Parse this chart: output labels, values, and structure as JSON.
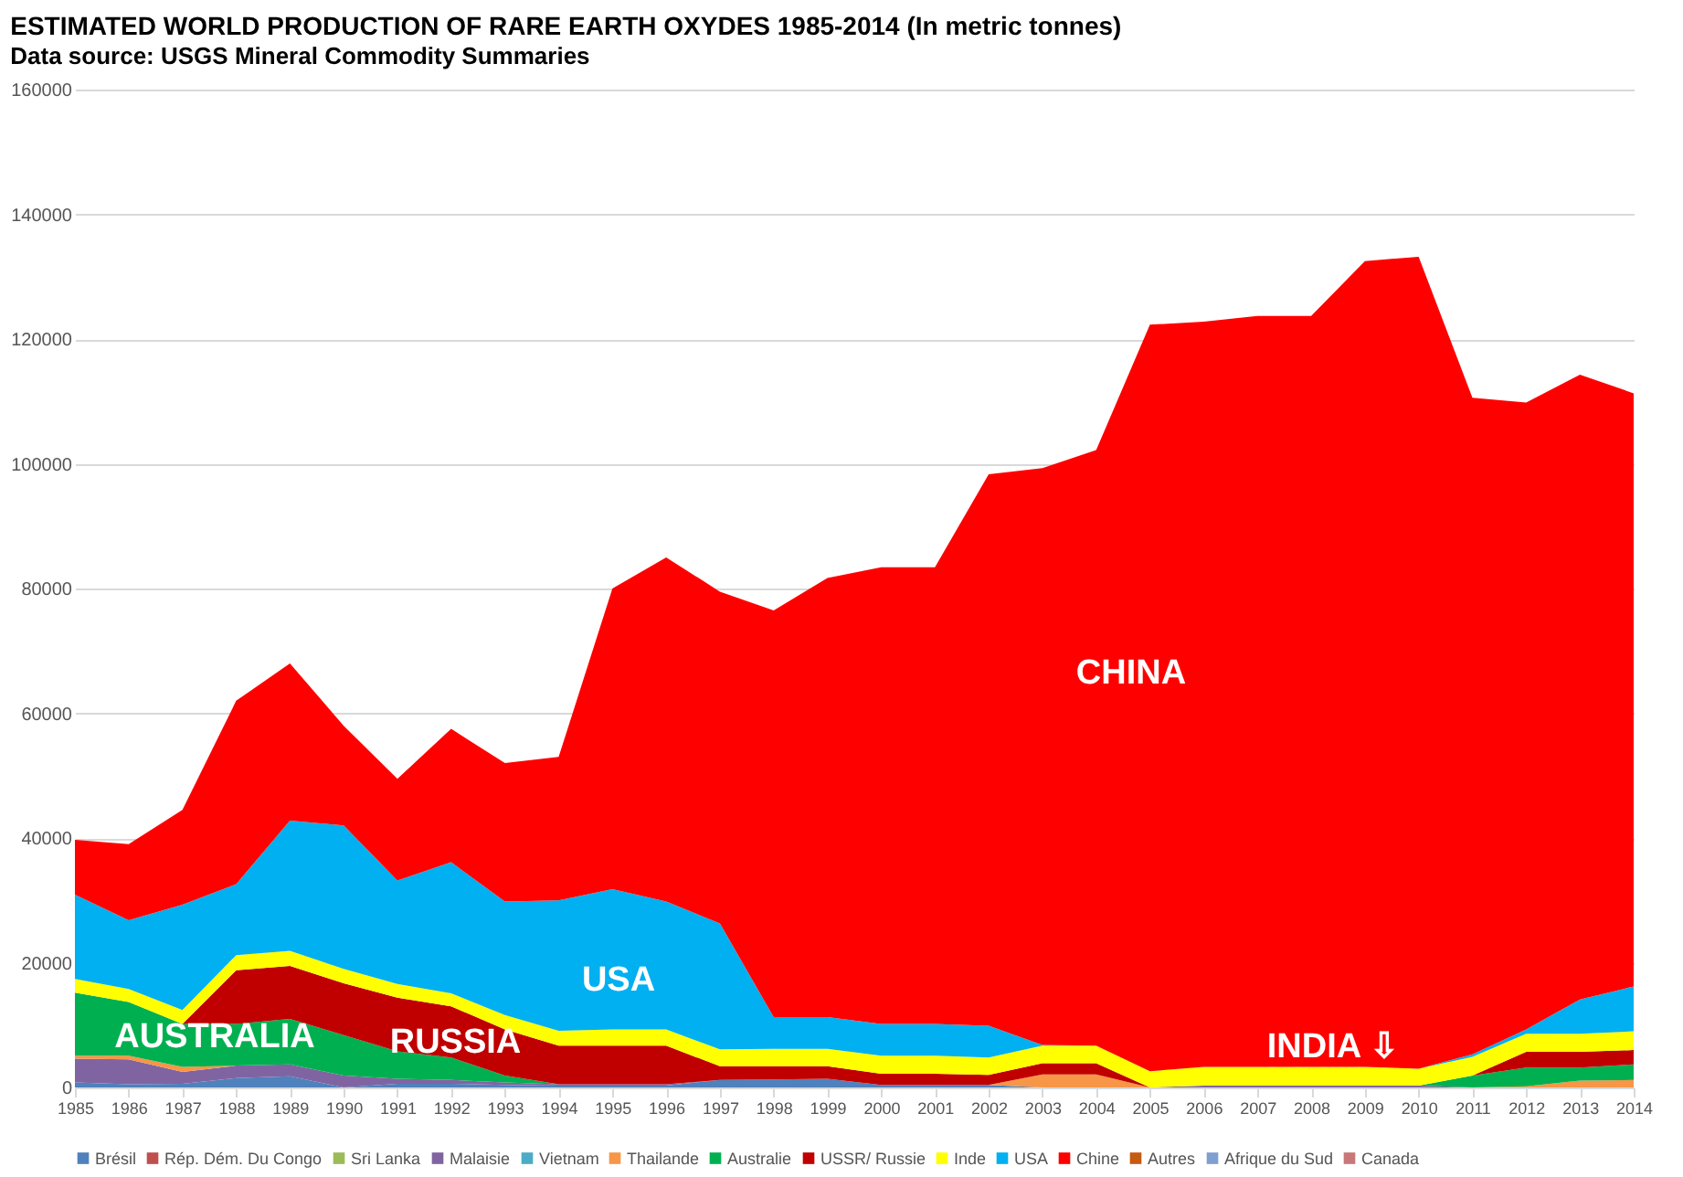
{
  "chart_data": {
    "type": "area",
    "stacked": true,
    "title": "ESTIMATED WORLD PRODUCTION OF RARE EARTH OXYDES 1985-2014 (In metric tonnes)",
    "subtitle": "Data source: USGS Mineral Commodity Summaries",
    "x": [
      1985,
      1986,
      1987,
      1988,
      1989,
      1990,
      1991,
      1992,
      1993,
      1994,
      1995,
      1996,
      1997,
      1998,
      1999,
      2000,
      2001,
      2002,
      2003,
      2004,
      2005,
      2006,
      2007,
      2008,
      2009,
      2010,
      2011,
      2012,
      2013,
      2014
    ],
    "xlim": [
      1985,
      2014
    ],
    "xticks": [
      1985,
      1986,
      1987,
      1988,
      1989,
      1990,
      1991,
      1992,
      1993,
      1994,
      1995,
      1996,
      1997,
      1998,
      1999,
      2000,
      2001,
      2002,
      2003,
      2004,
      2005,
      2006,
      2007,
      2008,
      2009,
      2010,
      2011,
      2012,
      2013,
      2014
    ],
    "ylim": [
      0,
      160000
    ],
    "yticks": [
      0,
      20000,
      40000,
      60000,
      80000,
      100000,
      120000,
      140000,
      160000
    ],
    "grid": "y",
    "legend": "bottom",
    "series": [
      {
        "name": "Brésil",
        "color": "#4f81bd",
        "values": [
          800,
          500,
          600,
          1500,
          1800,
          0,
          600,
          600,
          400,
          300,
          300,
          300,
          1200,
          1300,
          1400,
          400,
          400,
          400,
          0,
          0,
          0,
          0,
          0,
          0,
          0,
          0,
          0,
          0,
          0,
          0
        ]
      },
      {
        "name": "Rép. Dém. Du Congo",
        "color": "#c0504d",
        "values": [
          null,
          null,
          null,
          null,
          null,
          null,
          null,
          null,
          null,
          null,
          null,
          null,
          null,
          null,
          null,
          null,
          null,
          null,
          null,
          null,
          null,
          null,
          null,
          null,
          null,
          null,
          null,
          null,
          null,
          null
        ]
      },
      {
        "name": "Sri Lanka",
        "color": "#9bbb59",
        "values": [
          null,
          null,
          null,
          null,
          null,
          null,
          null,
          null,
          null,
          null,
          null,
          null,
          null,
          null,
          null,
          null,
          null,
          null,
          null,
          null,
          null,
          null,
          null,
          null,
          null,
          null,
          null,
          null,
          null,
          null
        ]
      },
      {
        "name": "Malaisie",
        "color": "#8064a2",
        "values": [
          3800,
          4000,
          1900,
          2000,
          1900,
          1900,
          800,
          600,
          400,
          200,
          200,
          200,
          0,
          0,
          0,
          0,
          0,
          0,
          0,
          0,
          0,
          300,
          300,
          300,
          300,
          300,
          0,
          0,
          0,
          0
        ]
      },
      {
        "name": "Vietnam",
        "color": "#4bacc6",
        "values": [
          null,
          null,
          null,
          null,
          null,
          null,
          null,
          null,
          null,
          null,
          null,
          null,
          null,
          null,
          null,
          null,
          null,
          null,
          null,
          null,
          null,
          null,
          null,
          null,
          null,
          null,
          null,
          null,
          null,
          null
        ]
      },
      {
        "name": "Thailande",
        "color": "#f79646",
        "values": [
          500,
          600,
          800,
          0,
          0,
          0,
          0,
          0,
          0,
          0,
          0,
          0,
          0,
          0,
          0,
          0,
          0,
          0,
          2100,
          2100,
          0,
          0,
          0,
          0,
          0,
          0,
          0,
          200,
          1100,
          1200
        ]
      },
      {
        "name": "Australie",
        "color": "#00b050",
        "values": [
          10100,
          8600,
          6900,
          6700,
          7300,
          6500,
          4400,
          3600,
          1100,
          0,
          0,
          0,
          0,
          0,
          0,
          0,
          0,
          0,
          0,
          0,
          0,
          0,
          0,
          0,
          0,
          0,
          1900,
          3000,
          2100,
          2500
        ]
      },
      {
        "name": "USSR/ Russie",
        "color": "#c00000",
        "values": [
          0,
          0,
          0,
          8600,
          8500,
          8300,
          8600,
          8200,
          7400,
          6200,
          6200,
          6200,
          2200,
          2100,
          2000,
          1800,
          1800,
          1600,
          1800,
          1800,
          0,
          0,
          0,
          0,
          0,
          0,
          0,
          2500,
          2500,
          2300
        ]
      },
      {
        "name": "Inde",
        "color": "#ffff00",
        "values": [
          2200,
          2100,
          2200,
          2400,
          2400,
          2300,
          2200,
          2100,
          2300,
          2400,
          2600,
          2600,
          2700,
          2800,
          2800,
          2900,
          2900,
          2800,
          2800,
          2800,
          2600,
          3000,
          3000,
          3000,
          3000,
          2700,
          3000,
          2900,
          2900,
          3000
        ]
      },
      {
        "name": "USA",
        "color": "#00b0f0",
        "values": [
          13500,
          11000,
          16900,
          11400,
          20900,
          23000,
          16600,
          21000,
          18200,
          20900,
          22500,
          20500,
          20200,
          5100,
          5100,
          5100,
          5100,
          5100,
          100,
          0,
          0,
          0,
          0,
          0,
          0,
          0,
          400,
          700,
          5500,
          7200
        ]
      },
      {
        "name": "Chine",
        "color": "#ff0000",
        "values": [
          8800,
          12200,
          15200,
          29400,
          25200,
          16000,
          16300,
          21400,
          22200,
          23000,
          48200,
          55200,
          53200,
          65200,
          70400,
          73200,
          73200,
          88400,
          92500,
          95500,
          119700,
          119500,
          120400,
          120400,
          129200,
          130200,
          105300,
          100500,
          100200,
          95100
        ]
      },
      {
        "name": "Autres",
        "color": "#c55a11",
        "values": [
          null,
          null,
          null,
          null,
          null,
          null,
          null,
          null,
          null,
          null,
          null,
          null,
          null,
          null,
          null,
          null,
          null,
          null,
          null,
          null,
          null,
          null,
          null,
          null,
          null,
          null,
          null,
          null,
          null,
          null
        ]
      },
      {
        "name": "Afrique du Sud",
        "color": "#7f9fd0",
        "values": [
          null,
          null,
          null,
          null,
          null,
          null,
          null,
          null,
          null,
          null,
          null,
          null,
          null,
          null,
          null,
          null,
          null,
          null,
          null,
          null,
          null,
          null,
          null,
          null,
          null,
          null,
          null,
          null,
          null,
          null
        ]
      },
      {
        "name": "Canada",
        "color": "#c87878",
        "values": [
          null,
          null,
          null,
          null,
          null,
          null,
          null,
          null,
          null,
          null,
          null,
          null,
          null,
          null,
          null,
          null,
          null,
          null,
          null,
          null,
          null,
          null,
          null,
          null,
          null,
          null,
          null,
          null,
          null,
          null
        ]
      }
    ],
    "annotations": [
      "CHINA",
      "USA",
      "AUSTRALIA",
      "RUSSIA",
      "INDIA ⇩"
    ]
  }
}
